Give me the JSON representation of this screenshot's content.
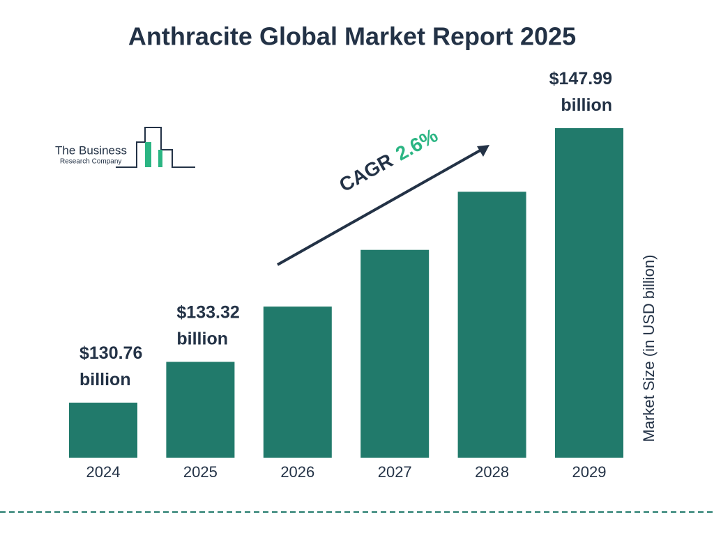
{
  "chart_data": {
    "type": "bar",
    "title": "Anthracite Global Market Report 2025",
    "categories": [
      "2024",
      "2025",
      "2026",
      "2027",
      "2028",
      "2029"
    ],
    "values": [
      130.76,
      133.32,
      136.79,
      140.35,
      144.0,
      147.99
    ],
    "value_labels": [
      "$130.76 billion",
      "$133.32 billion",
      null,
      null,
      null,
      "$147.99 billion"
    ],
    "color": "#217a6b",
    "y_label": "Market Size (in USD billion)",
    "annotation": {
      "label": "CAGR",
      "value": "2.6%"
    },
    "logo": {
      "line1": "The Business",
      "line2": "Research Company"
    }
  }
}
